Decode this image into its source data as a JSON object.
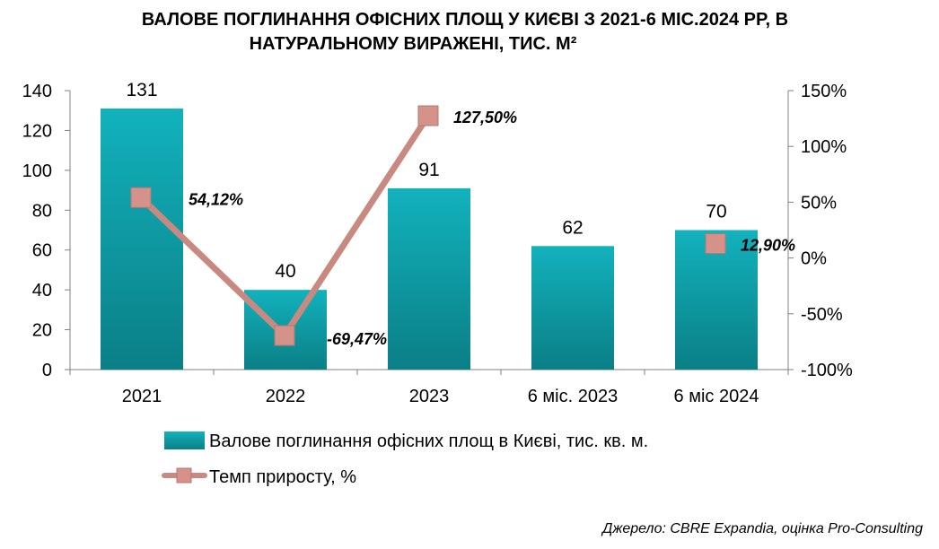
{
  "chart_data": {
    "type": "bar",
    "title_lines": [
      "ВАЛОВЕ ПОГЛИНАННЯ ОФІСНИХ ПЛОЩ У КИЄВІ З 2021-6 МІС.2024 РР, В",
      "НАТУРАЛЬНОМУ ВИРАЖЕНІ, ТИС. М²"
    ],
    "categories": [
      "2021",
      "2022",
      "2023",
      "6 міс. 2023",
      "6 міс 2024"
    ],
    "series": [
      {
        "name": "Валове поглинання офісних площ в Києві, тис. кв. м.",
        "type": "bar",
        "axis": "left",
        "values": [
          131,
          40,
          91,
          62,
          70
        ],
        "labels": [
          "131",
          "40",
          "91",
          "62",
          "70"
        ],
        "color": "#1aa3ad"
      },
      {
        "name": "Темп приросту, %",
        "type": "line",
        "axis": "right",
        "values": [
          54.12,
          -69.47,
          127.5,
          null,
          12.9
        ],
        "labels": [
          "54,12%",
          "-69,47%",
          "127,50%",
          null,
          "12,90%"
        ],
        "color": "#c88a80",
        "marker_color": "#d4928b"
      }
    ],
    "y_left": {
      "min": 0,
      "max": 140,
      "ticks": [
        "0",
        "20",
        "40",
        "60",
        "80",
        "100",
        "120",
        "140"
      ]
    },
    "y_right": {
      "min": -100,
      "max": 150,
      "ticks": [
        "-100%",
        "-50%",
        "0%",
        "50%",
        "100%",
        "150%"
      ]
    },
    "grid": false,
    "legend_position": "bottom",
    "source": "Джерело: CBRE Expandia, оцінка Pro-Consulting"
  }
}
